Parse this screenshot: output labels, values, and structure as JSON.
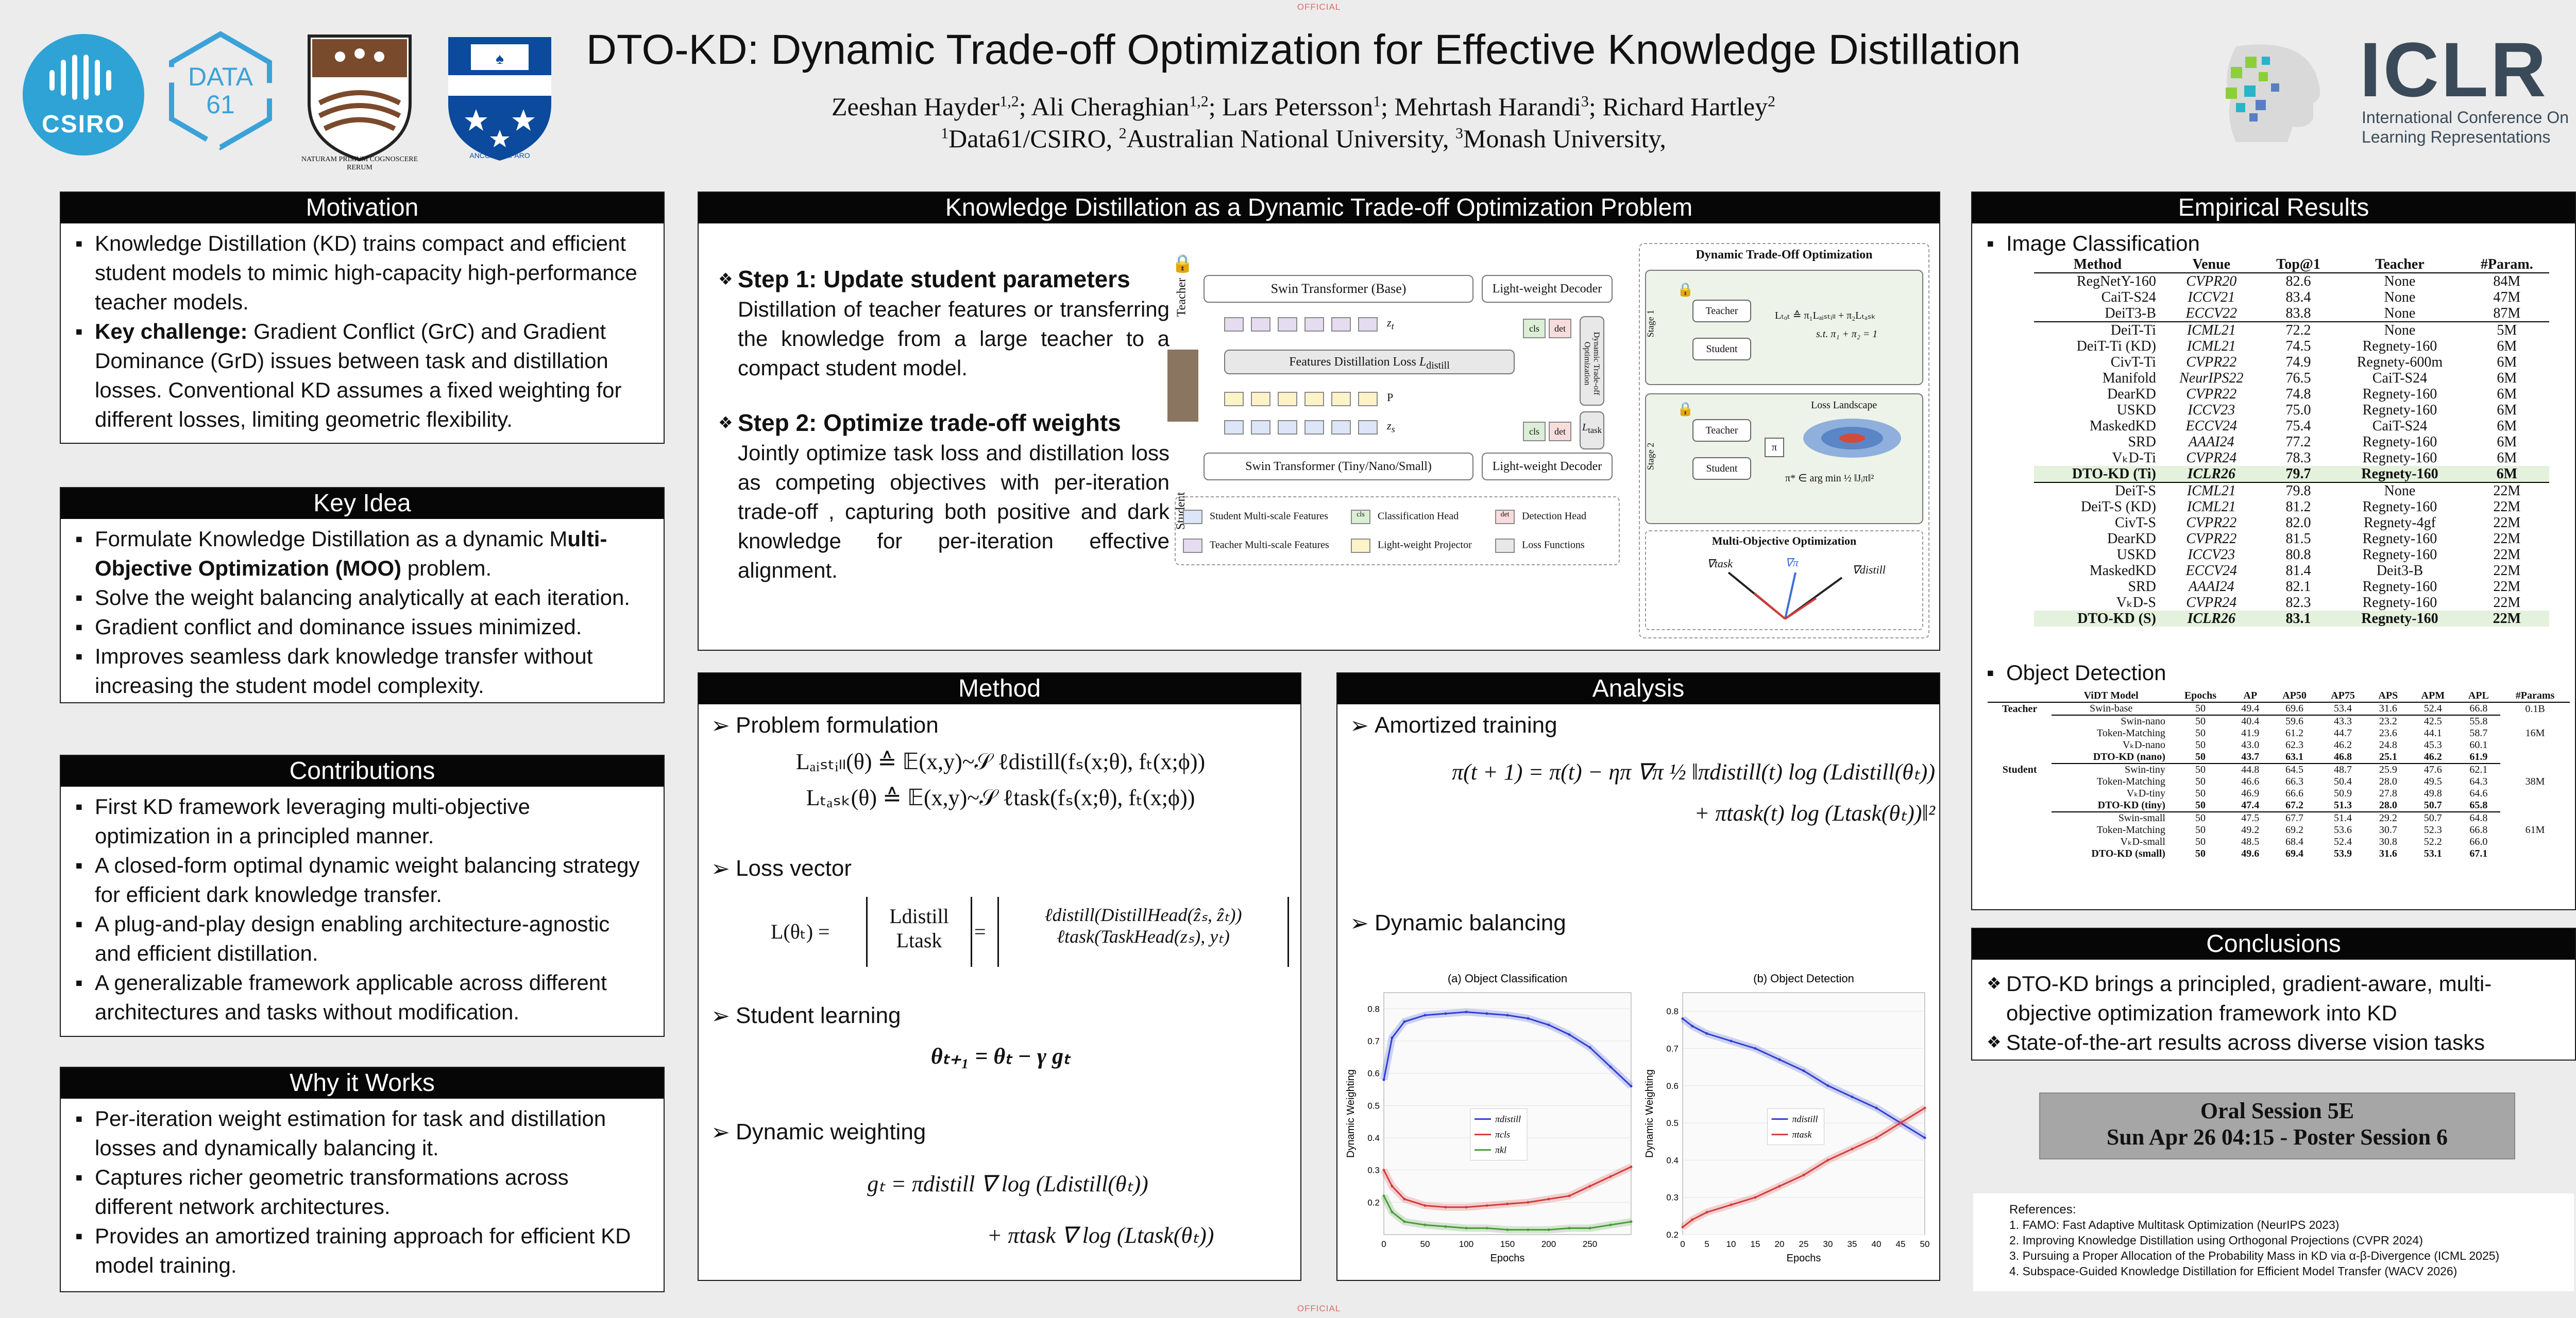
{
  "official_top": "OFFICIAL",
  "official_bottom": "OFFICIAL",
  "logos": {
    "csiro": "CSIRO",
    "data61_line1": "DATA",
    "data61_line2": "61",
    "anu_motto": "NATURAM PRIMUM COGNOSCERE RERUM",
    "monash_motto": "ANCORA IMPARO",
    "iclr_title": "ICLR",
    "iclr_sub1": "International Conference On",
    "iclr_sub2": "Learning Representations"
  },
  "header": {
    "title": "DTO-KD: Dynamic Trade-off Optimization for Effective Knowledge Distillation",
    "authors": [
      {
        "name": "Zeeshan Hayder",
        "sup": "1,2"
      },
      {
        "name": "Ali Cheraghian",
        "sup": "1,2"
      },
      {
        "name": "Lars Petersson",
        "sup": "1"
      },
      {
        "name": "Mehrtash Harandi",
        "sup": "3"
      },
      {
        "name": "Richard Hartley",
        "sup": "2"
      }
    ],
    "affiliations": [
      {
        "sup": "1",
        "name": "Data61/CSIRO,"
      },
      {
        "sup": "2",
        "name": "Australian National University,"
      },
      {
        "sup": "3",
        "name": "Monash University,"
      }
    ]
  },
  "motivation": {
    "title": "Motivation",
    "items": [
      {
        "lead": "",
        "text": "Knowledge Distillation (KD) trains compact and efficient student models to mimic high-capacity high-performance teacher models."
      },
      {
        "lead": "Key challenge:",
        "text": " Gradient Conflict (GrC) and Gradient Dominance (GrD) issues between task and distillation losses. Conventional KD assumes a fixed weighting for different losses, limiting geometric flexibility."
      }
    ]
  },
  "key_idea": {
    "title": "Key Idea",
    "items": [
      {
        "pre": "Formulate Knowledge Distillation as a dynamic M",
        "bold": "ulti-Objective Optimization (MOO)",
        "post": " problem."
      },
      {
        "pre": "Solve the weight balancing analytically at each iteration.",
        "bold": "",
        "post": ""
      },
      {
        "pre": "Gradient conflict and dominance issues minimized.",
        "bold": "",
        "post": ""
      },
      {
        "pre": "Improves seamless dark knowledge transfer without increasing the student model complexity.",
        "bold": "",
        "post": ""
      }
    ]
  },
  "contributions": {
    "title": "Contributions",
    "items": [
      "First KD framework leveraging multi-objective optimization in a principled manner.",
      "A closed-form optimal dynamic weight balancing strategy for efficient dark knowledge transfer.",
      "A plug-and-play design enabling architecture-agnostic and efficient distillation.",
      "A generalizable framework applicable across different architectures and tasks without modification."
    ]
  },
  "why": {
    "title": "Why it Works",
    "items": [
      "Per-iteration weight estimation for task and distillation losses and dynamically balancing it.",
      "Captures richer geometric transformations across different network architectures.",
      "Provides an amortized training approach for efficient KD model training."
    ]
  },
  "kd_problem": {
    "title": "Knowledge Distillation as a Dynamic Trade-off Optimization Problem",
    "step1_title": "Step 1: Update student parameters",
    "step1_text": "Distillation of teacher features or transferring the knowledge from a large teacher to a compact student model.",
    "step2_title": "Step 2: Optimize trade-off weights",
    "step2_text": "Jointly optimize task loss and distillation loss as competing objectives with per-iteration trade-off , capturing both positive and dark knowledge for per-iteration effective alignment.",
    "diagram": {
      "teacher_label": "Teacher",
      "student_label": "Student",
      "swin_base": "Swin Transformer (Base)",
      "swin_small": "Swin Transformer (Tiny/Nano/Small)",
      "decoder_top": "Light-weight Decoder",
      "decoder_bottom": "Light-weight Decoder",
      "features_loss": "Features Distillation Loss",
      "l_distill": "L",
      "l_distill_sub": "distill",
      "zt": "z",
      "zt_sub": "t",
      "zs": "z",
      "zs_sub": "s",
      "p": "P",
      "cls": "cls",
      "det": "det",
      "dto_vertical": "Dynamic Trade-off Optimization",
      "l_task": "L",
      "l_task_sub": "task",
      "legend": [
        {
          "label": "Student Multi-scale Features",
          "color": "#dce6f8"
        },
        {
          "label": "Classification Head",
          "color": "#dcefd6",
          "tag": "cls"
        },
        {
          "label": "Detection Head",
          "color": "#f8dcdc",
          "tag": "det"
        },
        {
          "label": "Teacher Multi-scale Features",
          "color": "#e6dcf0"
        },
        {
          "label": "Light-weight Projector",
          "color": "#fdf3c8"
        },
        {
          "label": "Loss Functions",
          "color": "#e8e8e8"
        }
      ],
      "dto_title": "Dynamic Trade-Off Optimization",
      "stage1": "Stage 1",
      "stage2": "Stage 2",
      "teacher_box": "Teacher",
      "student_box": "Student",
      "teacher_box2": "Teacher",
      "student_box2": "Student",
      "ltot_eq": "Lₜₒₜ ≙ π₁Lₐᵢₛₜᵢₗₗ + π₂Lₜₐₛₖ",
      "constraint": "s.t. π₁ + π₂ = 1",
      "pi_box": "π",
      "loss_landscape": "Loss Landscape",
      "argmin": "π* ∈ arg min ½ ‖Jᵢπ‖²",
      "moo_title": "Multi-Objective Optimization",
      "grad_task": "∇task",
      "grad_distill": "∇distill",
      "grad_pi": "∇π"
    }
  },
  "method": {
    "title": "Method",
    "problem_formulation": "Problem formulation",
    "eq1": "Lₐᵢₛₜᵢₗₗ(θ) ≙ 𝔼(x,y)~𝒮 ℓdistill(fₛ(x;θ), fₜ(x;ϕ))",
    "eq2": "Lₜₐₛₖ(θ) ≙ 𝔼(x,y)~𝒮 ℓtask(fₛ(x;θ), fₜ(x;ϕ))",
    "loss_vector": "Loss vector",
    "lv_lhs": "L(θₜ) =",
    "lv_col1a": "Ldistill",
    "lv_col1b": "Ltask",
    "lv_col2a": "ℓdistill(DistillHead(ẑₛ, ẑₜ))",
    "lv_col2b": "ℓtask(TaskHead(zₛ), yₜ)",
    "student_learning": "Student learning",
    "eq_sl": "θₜ₊₁ = θₜ − γ gₜ",
    "dynamic_weighting": "Dynamic weighting",
    "eq_dw1": "gₜ = πdistill ∇ log (Ldistill(θₜ))",
    "eq_dw2": "+ πtask ∇ log (Ltask(θₜ))"
  },
  "analysis": {
    "title": "Analysis",
    "amortized": "Amortized training",
    "eq_am1": "π(t + 1) = π(t) − ηπ ∇π ½ ‖πdistill(t) log (Ldistill(θₜ))",
    "eq_am2": "+ πtask(t) log (Ltask(θₜ))‖²",
    "dynamic_balancing": "Dynamic balancing"
  },
  "chart_data": [
    {
      "type": "line",
      "title": "(a) Object Classification",
      "xlabel": "Epochs",
      "ylabel": "Dynamic Weighting",
      "xlim": [
        0,
        300
      ],
      "ylim": [
        0.1,
        0.85
      ],
      "xticks": [
        0,
        50,
        100,
        150,
        200,
        250
      ],
      "yticks": [
        0.2,
        0.3,
        0.4,
        0.5,
        0.6,
        0.7,
        0.8
      ],
      "legend_position": "center",
      "x": [
        0,
        10,
        25,
        50,
        75,
        100,
        125,
        150,
        175,
        200,
        225,
        250,
        275,
        300
      ],
      "series": [
        {
          "name": "πdistill",
          "color": "#2f3fd4",
          "values": [
            0.58,
            0.71,
            0.76,
            0.78,
            0.785,
            0.79,
            0.785,
            0.78,
            0.77,
            0.75,
            0.72,
            0.68,
            0.62,
            0.56
          ]
        },
        {
          "name": "πcls",
          "color": "#d43a3a",
          "values": [
            0.3,
            0.25,
            0.21,
            0.19,
            0.185,
            0.185,
            0.19,
            0.195,
            0.2,
            0.21,
            0.22,
            0.25,
            0.28,
            0.31
          ]
        },
        {
          "name": "πkl",
          "color": "#4a9b3a",
          "values": [
            0.22,
            0.17,
            0.14,
            0.13,
            0.125,
            0.12,
            0.12,
            0.115,
            0.115,
            0.115,
            0.12,
            0.12,
            0.13,
            0.14
          ]
        }
      ]
    },
    {
      "type": "line",
      "title": "(b) Object Detection",
      "xlabel": "Epochs",
      "ylabel": "Dynamic Weighting",
      "xlim": [
        0,
        50
      ],
      "ylim": [
        0.2,
        0.85
      ],
      "xticks": [
        0,
        5,
        10,
        15,
        20,
        25,
        30,
        35,
        40,
        45,
        50
      ],
      "yticks": [
        0.2,
        0.3,
        0.4,
        0.5,
        0.6,
        0.7,
        0.8
      ],
      "legend_position": "center",
      "x": [
        0,
        2,
        5,
        10,
        15,
        20,
        25,
        30,
        35,
        40,
        45,
        50
      ],
      "series": [
        {
          "name": "πdistill",
          "color": "#2f3fd4",
          "values": [
            0.78,
            0.76,
            0.74,
            0.72,
            0.7,
            0.67,
            0.64,
            0.6,
            0.57,
            0.54,
            0.5,
            0.46
          ]
        },
        {
          "name": "πtask",
          "color": "#d43a3a",
          "values": [
            0.22,
            0.24,
            0.26,
            0.28,
            0.3,
            0.33,
            0.36,
            0.4,
            0.43,
            0.46,
            0.5,
            0.54
          ]
        }
      ]
    }
  ],
  "empirical": {
    "title": "Empirical Results",
    "image_cls": "Image Classification",
    "cls_headers": [
      "Method",
      "Venue",
      "Top@1",
      "Teacher",
      "#Param."
    ],
    "cls_groups": [
      [
        [
          "RegNetY-160",
          "CVPR20",
          "82.6",
          "None",
          "84M"
        ],
        [
          "CaiT-S24",
          "ICCV21",
          "83.4",
          "None",
          "47M"
        ],
        [
          "DeiT3-B",
          "ECCV22",
          "83.8",
          "None",
          "87M"
        ]
      ],
      [
        [
          "DeiT-Ti",
          "ICML21",
          "72.2",
          "None",
          "5M"
        ],
        [
          "DeiT-Ti (KD)",
          "ICML21",
          "74.5",
          "Regnety-160",
          "6M"
        ],
        [
          "CivT-Ti",
          "CVPR22",
          "74.9",
          "Regnety-600m",
          "6M"
        ],
        [
          "Manifold",
          "NeurIPS22",
          "76.5",
          "CaiT-S24",
          "6M"
        ],
        [
          "DearKD",
          "CVPR22",
          "74.8",
          "Regnety-160",
          "6M"
        ],
        [
          "USKD",
          "ICCV23",
          "75.0",
          "Regnety-160",
          "6M"
        ],
        [
          "MaskedKD",
          "ECCV24",
          "75.4",
          "CaiT-S24",
          "6M"
        ],
        [
          "SRD",
          "AAAI24",
          "77.2",
          "Regnety-160",
          "6M"
        ],
        [
          "VₖD-Ti",
          "CVPR24",
          "78.3",
          "Regnety-160",
          "6M"
        ],
        [
          "DTO-KD (Ti)",
          "ICLR26",
          "79.7",
          "Regnety-160",
          "6M"
        ]
      ],
      [
        [
          "DeiT-S",
          "ICML21",
          "79.8",
          "None",
          "22M"
        ],
        [
          "DeiT-S (KD)",
          "ICML21",
          "81.2",
          "Regnety-160",
          "22M"
        ],
        [
          "CivT-S",
          "CVPR22",
          "82.0",
          "Regnety-4gf",
          "22M"
        ],
        [
          "DearKD",
          "CVPR22",
          "81.5",
          "Regnety-160",
          "22M"
        ],
        [
          "USKD",
          "ICCV23",
          "80.8",
          "Regnety-160",
          "22M"
        ],
        [
          "MaskedKD",
          "ECCV24",
          "81.4",
          "Deit3-B",
          "22M"
        ],
        [
          "SRD",
          "AAAI24",
          "82.1",
          "Regnety-160",
          "22M"
        ],
        [
          "VₖD-S",
          "CVPR24",
          "82.3",
          "Regnety-160",
          "22M"
        ],
        [
          "DTO-KD (S)",
          "ICLR26",
          "83.1",
          "Regnety-160",
          "22M"
        ]
      ]
    ],
    "obj_det": "Object Detection",
    "det_headers": [
      "",
      "ViDT Model",
      "Epochs",
      "AP",
      "AP50",
      "AP75",
      "APS",
      "APM",
      "APL",
      "#Params"
    ],
    "det_teacher": [
      "Teacher",
      "Swin-base",
      "50",
      "49.4",
      "69.6",
      "53.4",
      "31.6",
      "52.4",
      "66.8",
      "0.1B"
    ],
    "det_student_label": "Student",
    "det_groups": [
      {
        "params": "16M",
        "rows": [
          [
            "Swin-nano",
            "50",
            "40.4",
            "59.6",
            "43.3",
            "23.2",
            "42.5",
            "55.8"
          ],
          [
            "Token-Matching",
            "50",
            "41.9",
            "61.2",
            "44.7",
            "23.6",
            "44.1",
            "58.7"
          ],
          [
            "VₖD-nano",
            "50",
            "43.0",
            "62.3",
            "46.2",
            "24.8",
            "45.3",
            "60.1"
          ],
          [
            "DTO-KD (nano)",
            "50",
            "43.7",
            "63.1",
            "46.8",
            "25.1",
            "46.2",
            "61.9"
          ]
        ]
      },
      {
        "params": "38M",
        "rows": [
          [
            "Swin-tiny",
            "50",
            "44.8",
            "64.5",
            "48.7",
            "25.9",
            "47.6",
            "62.1"
          ],
          [
            "Token-Matching",
            "50",
            "46.6",
            "66.3",
            "50.4",
            "28.0",
            "49.5",
            "64.3"
          ],
          [
            "VₖD-tiny",
            "50",
            "46.9",
            "66.6",
            "50.9",
            "27.8",
            "49.8",
            "64.6"
          ],
          [
            "DTO-KD (tiny)",
            "50",
            "47.4",
            "67.2",
            "51.3",
            "28.0",
            "50.7",
            "65.8"
          ]
        ]
      },
      {
        "params": "61M",
        "rows": [
          [
            "Swin-small",
            "50",
            "47.5",
            "67.7",
            "51.4",
            "29.2",
            "50.7",
            "64.8"
          ],
          [
            "Token-Matching",
            "50",
            "49.2",
            "69.2",
            "53.6",
            "30.7",
            "52.3",
            "66.8"
          ],
          [
            "VₖD-small",
            "50",
            "48.5",
            "68.4",
            "52.4",
            "30.8",
            "52.2",
            "66.0"
          ],
          [
            "DTO-KD (small)",
            "50",
            "49.6",
            "69.4",
            "53.9",
            "31.6",
            "53.1",
            "67.1"
          ]
        ]
      }
    ]
  },
  "conclusions": {
    "title": "Conclusions",
    "items": [
      "DTO-KD brings a principled, gradient-aware, multi-objective optimization framework into KD",
      "State-of-the-art results across diverse vision tasks"
    ]
  },
  "session": {
    "line1": "Oral Session 5E",
    "line2": "Sun Apr 26 04:15 - Poster Session 6"
  },
  "references": {
    "title": "References:",
    "items": [
      {
        "num": "1.",
        "text": "FAMO: Fast Adaptive Multitask Optimization (NeurIPS 2023)"
      },
      {
        "num": "2.",
        "text": "Improving Knowledge Distillation using Orthogonal Projections (CVPR 2024)"
      },
      {
        "num": "3.",
        "text": "Pursuing a Proper Allocation of the Probability Mass in KD via α-β-Divergence (ICML 2025)"
      },
      {
        "num": "4.",
        "text": "Subspace-Guided Knowledge Distillation for Efficient Model Transfer (WACV 2026)"
      }
    ]
  }
}
